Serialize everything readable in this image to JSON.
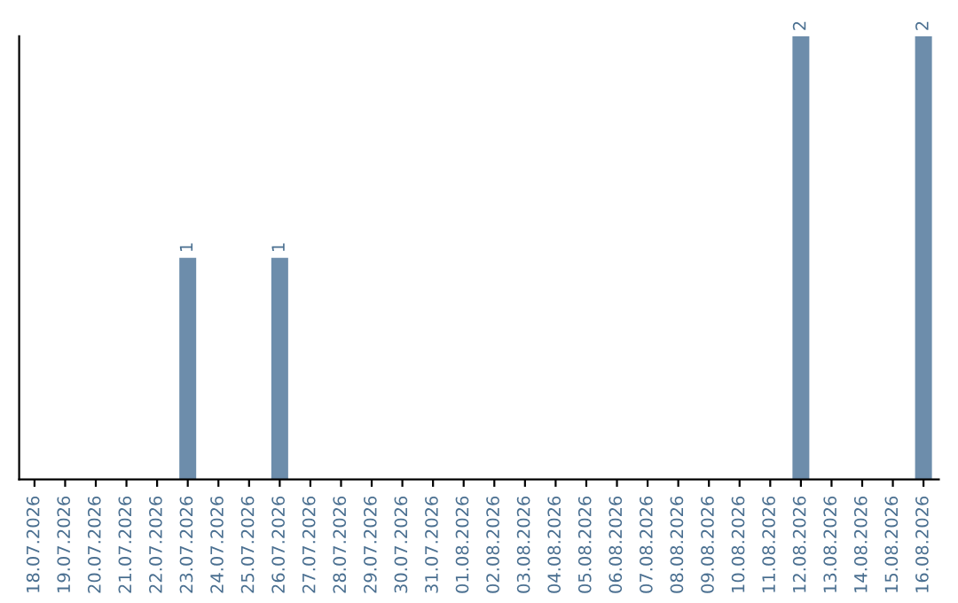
{
  "chart_data": {
    "type": "bar",
    "categories": [
      "18.07.2026",
      "19.07.2026",
      "20.07.2026",
      "21.07.2026",
      "22.07.2026",
      "23.07.2026",
      "24.07.2026",
      "25.07.2026",
      "26.07.2026",
      "27.07.2026",
      "28.07.2026",
      "29.07.2026",
      "30.07.2026",
      "31.07.2026",
      "01.08.2026",
      "02.08.2026",
      "03.08.2026",
      "04.08.2026",
      "05.08.2026",
      "06.08.2026",
      "07.08.2026",
      "08.08.2026",
      "09.08.2026",
      "10.08.2026",
      "11.08.2026",
      "12.08.2026",
      "13.08.2026",
      "14.08.2026",
      "15.08.2026",
      "16.08.2026"
    ],
    "values": [
      0,
      0,
      0,
      0,
      0,
      1,
      0,
      0,
      1,
      0,
      0,
      0,
      0,
      0,
      0,
      0,
      0,
      0,
      0,
      0,
      0,
      0,
      0,
      0,
      0,
      2,
      0,
      0,
      0,
      2
    ],
    "value_labels": [
      null,
      null,
      null,
      null,
      null,
      "1",
      null,
      null,
      "1",
      null,
      null,
      null,
      null,
      null,
      null,
      null,
      null,
      null,
      null,
      null,
      null,
      null,
      null,
      null,
      null,
      "2",
      null,
      null,
      null,
      "2"
    ],
    "color": "#6d8dab",
    "ylim": [
      0,
      2
    ],
    "tick_labels": "x",
    "grid": false,
    "legend": false
  }
}
